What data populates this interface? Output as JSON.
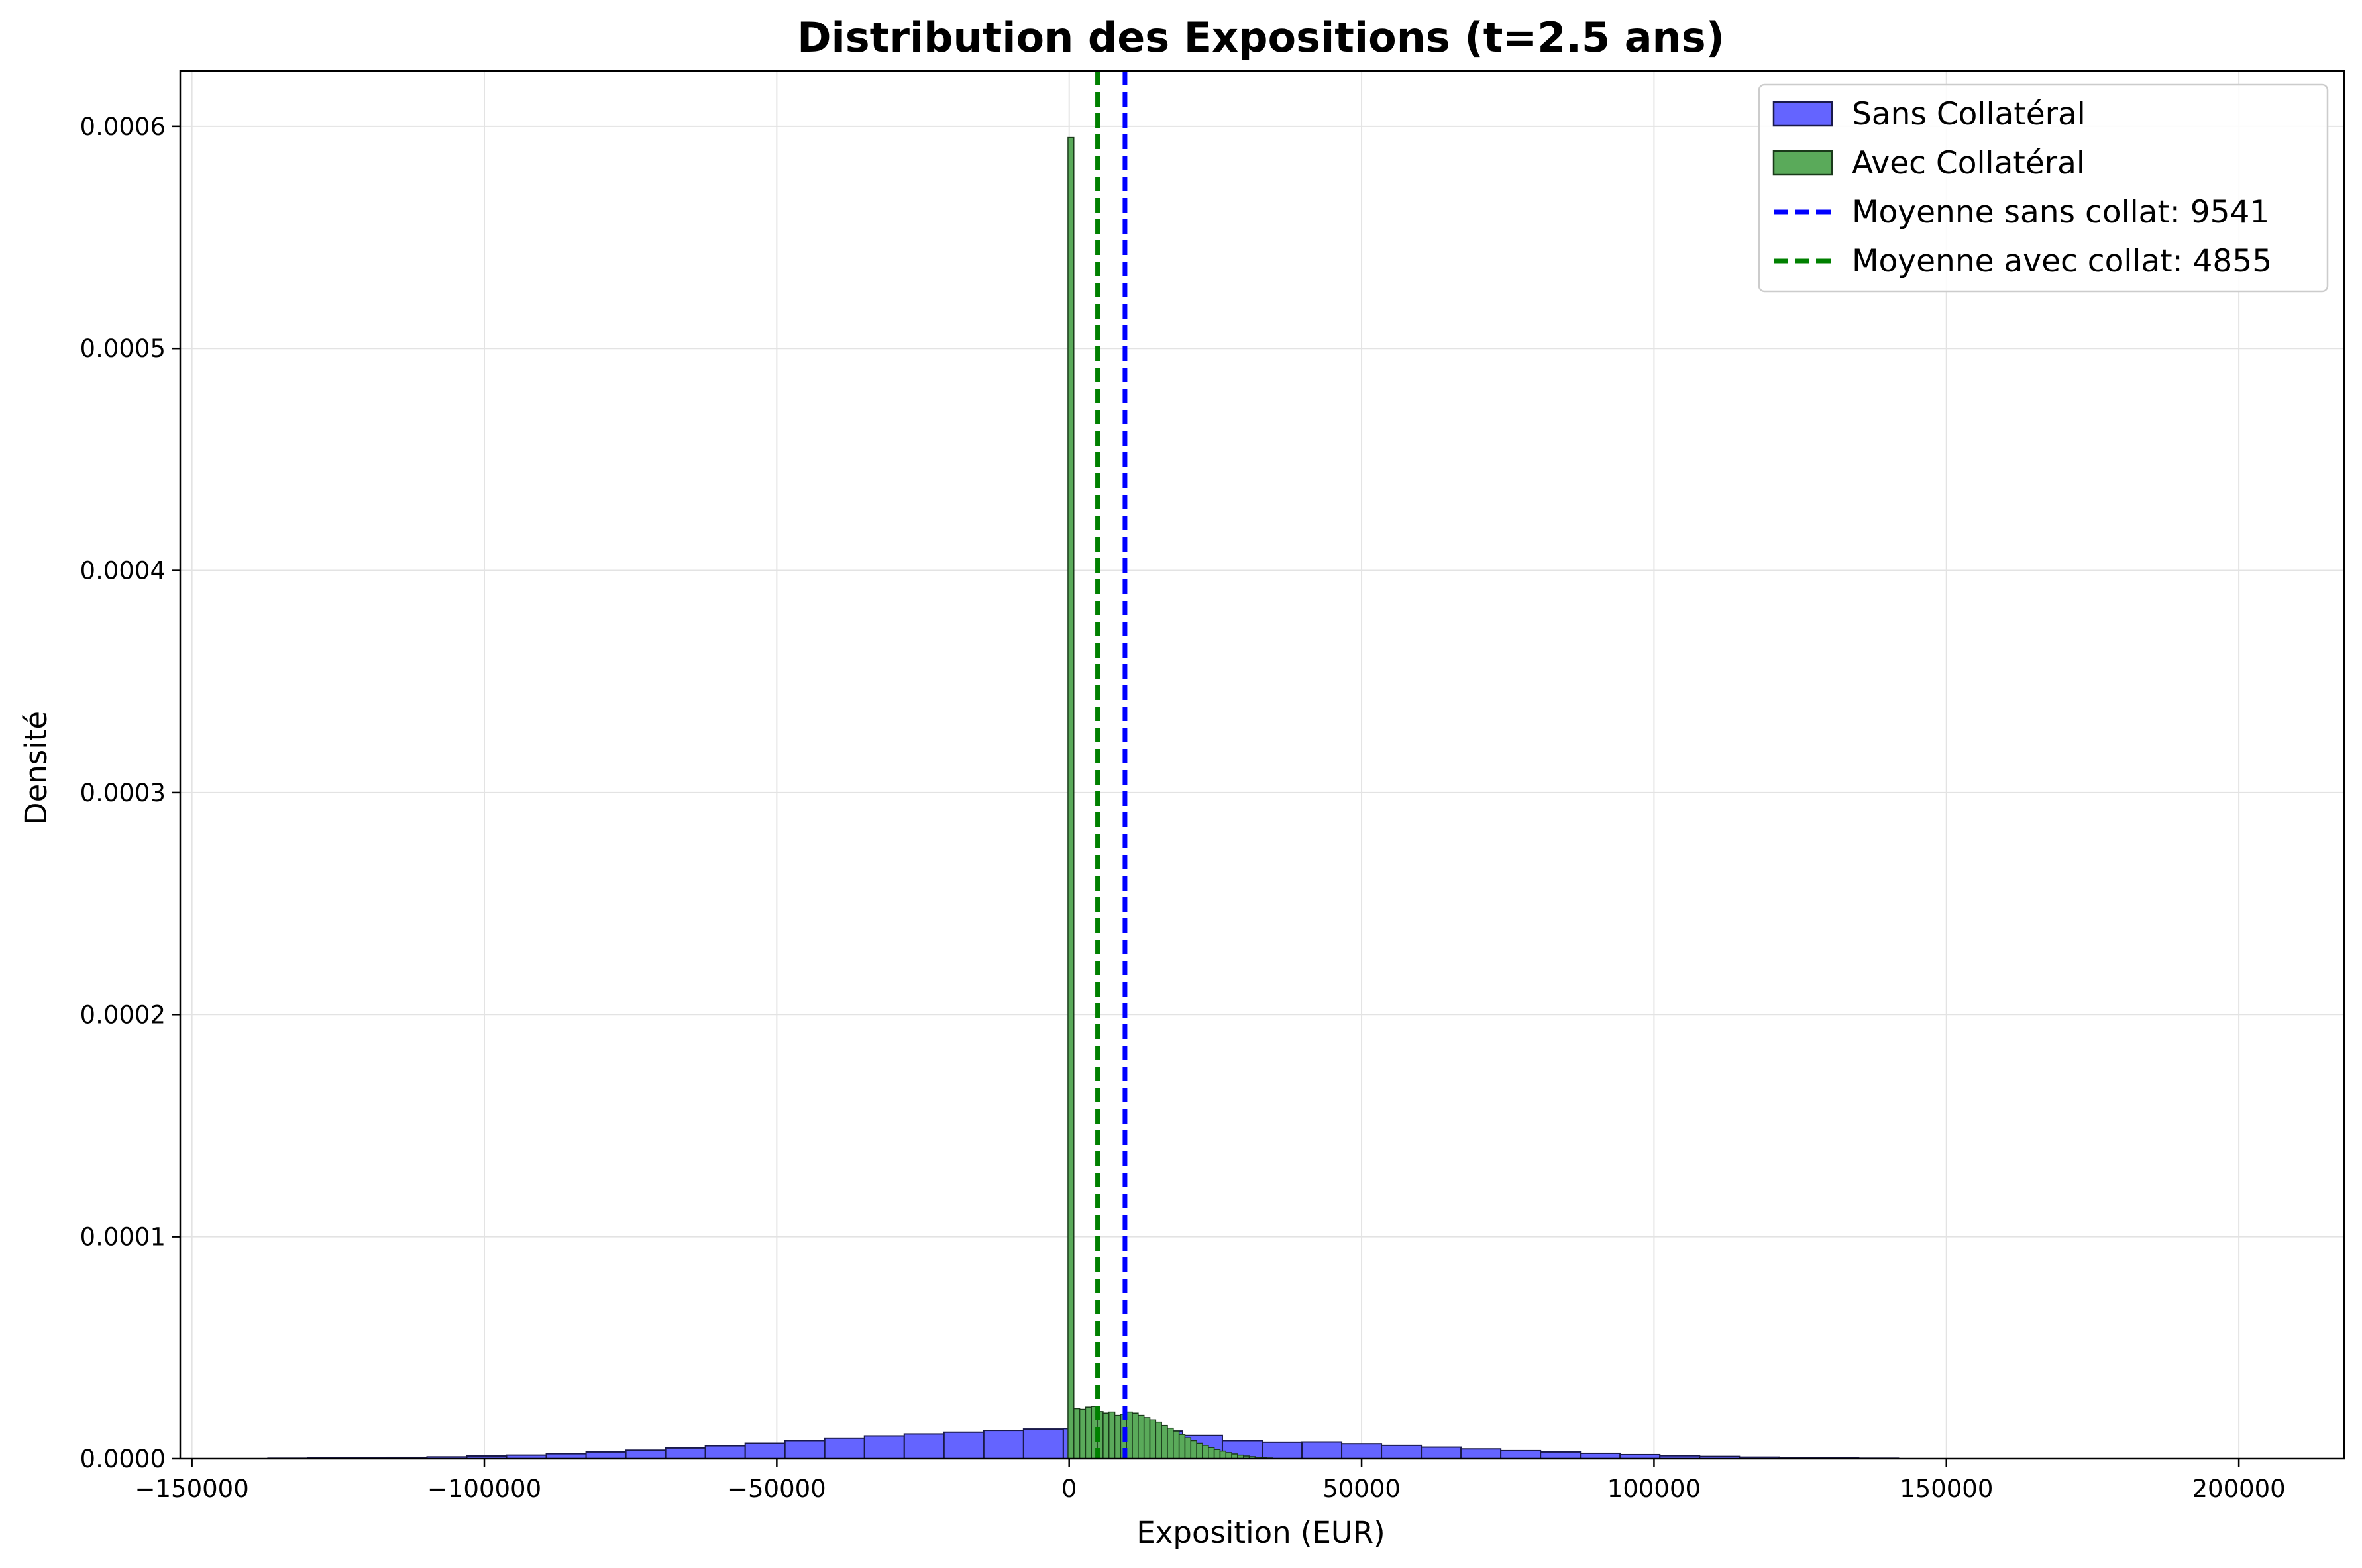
{
  "chart_data": {
    "type": "histogram",
    "title": "Distribution des Expositions (t=2.5 ans)",
    "xlabel": "Exposition (EUR)",
    "ylabel": "Densité",
    "xlim": [
      -152000,
      218000
    ],
    "ylim": [
      0,
      0.000625
    ],
    "x_ticks": [
      -150000,
      -100000,
      -50000,
      0,
      50000,
      100000,
      150000,
      200000
    ],
    "x_tick_labels": [
      "−150000",
      "−100000",
      "−50000",
      "0",
      "50000",
      "100000",
      "150000",
      "200000"
    ],
    "y_ticks": [
      0,
      0.0001,
      0.0002,
      0.0003,
      0.0004,
      0.0005,
      0.0006
    ],
    "y_tick_labels": [
      "0.0000",
      "0.0001",
      "0.0002",
      "0.0003",
      "0.0004",
      "0.0005",
      "0.0006"
    ],
    "grid": true,
    "legend_position": "top-right",
    "series": [
      {
        "name": "Sans Collatéral",
        "color": "#6464ff",
        "edge": "#1a1a4a",
        "bin_start": -137000,
        "bin_width": 6800,
        "values": [
          2e-07,
          3e-07,
          4e-07,
          6e-07,
          8e-07,
          1.2e-06,
          1.6e-06,
          2.2e-06,
          3e-06,
          3.8e-06,
          4.8e-06,
          5.8e-06,
          7e-06,
          8.2e-06,
          9.3e-06,
          1.03e-05,
          1.12e-05,
          1.2e-05,
          1.28e-05,
          1.34e-05,
          1.36e-05,
          1.34e-05,
          1.25e-05,
          1.05e-05,
          8.2e-06,
          7.5e-06,
          7.6e-06,
          6.8e-06,
          6e-06,
          5.2e-06,
          4.4e-06,
          3.6e-06,
          3e-06,
          2.4e-06,
          1.8e-06,
          1.3e-06,
          1e-06,
          7e-07,
          5e-07,
          3e-07,
          2e-07
        ]
      },
      {
        "name": "Avec Collatéral",
        "color": "#5aaa5a",
        "edge": "#1a3a1a",
        "bins": [
          [
            -200,
            800,
            0.000595
          ],
          [
            800,
            1800,
            2.25e-05
          ],
          [
            1800,
            2800,
            2.22e-05
          ],
          [
            2800,
            3800,
            2.32e-05
          ],
          [
            3800,
            4800,
            2.35e-05
          ],
          [
            4800,
            5800,
            2.12e-05
          ],
          [
            5800,
            6800,
            2.05e-05
          ],
          [
            6800,
            7800,
            2.1e-05
          ],
          [
            7800,
            8800,
            1.95e-05
          ],
          [
            8800,
            9800,
            2e-05
          ],
          [
            9800,
            10800,
            2.1e-05
          ],
          [
            10800,
            11800,
            2.05e-05
          ],
          [
            11800,
            12800,
            1.95e-05
          ],
          [
            12800,
            13800,
            1.85e-05
          ],
          [
            13800,
            14800,
            1.75e-05
          ],
          [
            14800,
            15800,
            1.65e-05
          ],
          [
            15800,
            16800,
            1.5e-05
          ],
          [
            16800,
            17800,
            1.38e-05
          ],
          [
            17800,
            18800,
            1.25e-05
          ],
          [
            18800,
            19800,
            1.1e-05
          ],
          [
            19800,
            20800,
            9.5e-06
          ],
          [
            20800,
            21800,
            8.2e-06
          ],
          [
            21800,
            22800,
            7e-06
          ],
          [
            22800,
            23800,
            6e-06
          ],
          [
            23800,
            24800,
            5e-06
          ],
          [
            24800,
            25800,
            4.1e-06
          ],
          [
            25800,
            26800,
            3.4e-06
          ],
          [
            26800,
            27800,
            2.7e-06
          ],
          [
            27800,
            28800,
            2.1e-06
          ],
          [
            28800,
            29800,
            1.6e-06
          ],
          [
            29800,
            30800,
            1.2e-06
          ],
          [
            30800,
            31800,
            9e-07
          ],
          [
            31800,
            32800,
            6e-07
          ],
          [
            32800,
            33800,
            4e-07
          ],
          [
            33800,
            34800,
            3e-07
          ]
        ]
      },
      {
        "name": "Moyenne sans collat: 9541",
        "type": "vline",
        "x": 9541,
        "color": "#0000ff",
        "style": "dashed"
      },
      {
        "name": "Moyenne avec collat: 4855",
        "type": "vline",
        "x": 4855,
        "color": "#008000",
        "style": "dashed"
      }
    ]
  }
}
